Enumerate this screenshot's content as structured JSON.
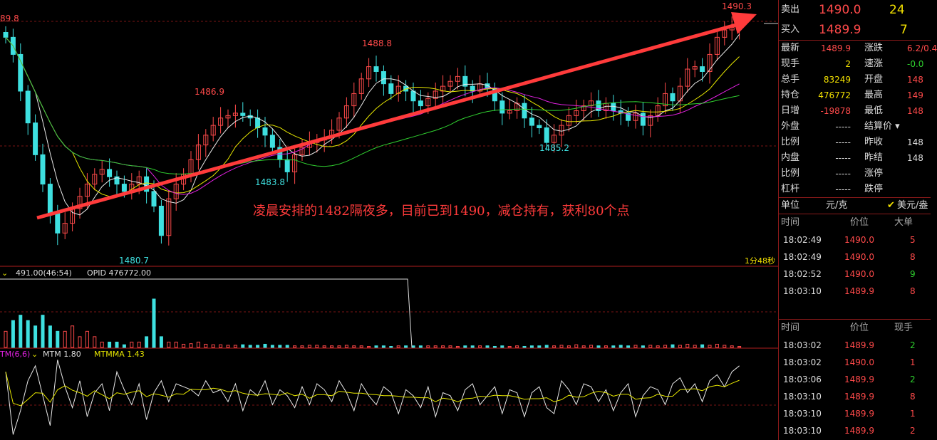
{
  "chart_data": {
    "type": "candlestick",
    "price_axis_guides": [
      1490.3,
      1489.8
    ],
    "annotations": {
      "high_top": "1490.3",
      "left_edge": "89.8",
      "l1": "1486.9",
      "l2": "1488.8",
      "l3": "1483.8",
      "l4": "1485.2",
      "l5": "1480.7",
      "comment": "凌晨安排的1482隔夜多，目前已到1490，减仓持有，获利80个点",
      "period": "1分48秒"
    },
    "volume_header": {
      "vol": "491.00(46:54)",
      "opid": "OPID 476772.00"
    },
    "mtm_header": {
      "name": "TM(6,6)",
      "mtm": "MTM 1.80",
      "mtmma": "MTMMA 1.43"
    },
    "closes": [
      1489.6,
      1488.9,
      1487.4,
      1486.1,
      1484.8,
      1483.6,
      1482.4,
      1481.6,
      1482.0,
      1482.6,
      1483.1,
      1483.6,
      1484.0,
      1484.2,
      1483.9,
      1483.6,
      1483.3,
      1483.6,
      1483.9,
      1483.3,
      1482.7,
      1481.5,
      1483.0,
      1483.6,
      1484.0,
      1484.6,
      1485.2,
      1485.6,
      1486.0,
      1486.3,
      1486.4,
      1486.5,
      1486.4,
      1486.3,
      1485.9,
      1485.6,
      1485.1,
      1484.6,
      1484.1,
      1484.8,
      1485.1,
      1485.3,
      1485.4,
      1485.5,
      1485.8,
      1486.3,
      1486.8,
      1487.3,
      1487.9,
      1488.4,
      1488.2,
      1487.7,
      1487.3,
      1487.6,
      1487.4,
      1487.0,
      1486.8,
      1487.1,
      1487.4,
      1487.6,
      1487.8,
      1488.0,
      1487.6,
      1487.4,
      1487.7,
      1487.5,
      1487.0,
      1486.5,
      1486.6,
      1486.9,
      1486.3,
      1486.0,
      1485.9,
      1485.3,
      1485.6,
      1486.0,
      1486.4,
      1486.6,
      1486.8,
      1487.0,
      1486.6,
      1486.9,
      1486.6,
      1486.5,
      1486.2,
      1486.5,
      1486.0,
      1486.4,
      1486.8,
      1487.3,
      1487.0,
      1487.6,
      1488.3,
      1488.4,
      1488.2,
      1488.9,
      1489.6,
      1489.9,
      1490.0,
      1490.2
    ],
    "volumes": [
      3,
      5,
      6,
      5,
      4,
      6,
      4,
      3,
      3,
      4,
      2,
      3,
      2,
      1,
      1,
      1,
      0.5,
      1,
      1,
      2,
      9,
      2,
      1,
      1,
      0.6,
      0.7,
      1,
      0.6,
      0.5,
      0.5,
      0.4,
      0.4,
      0.5,
      0.4,
      0.4,
      0.6,
      0.4,
      0.4,
      0.4,
      0.3,
      0.3,
      0.4,
      0.4,
      0.3,
      0.3,
      0.3,
      0.4,
      0.3,
      0.3,
      0.2,
      0.3,
      0.3,
      0.2,
      0.3,
      0.3,
      0.3,
      0.3,
      0.3,
      0.3,
      0.3,
      0.3,
      0.2,
      0.3,
      0.3,
      0.3,
      0.3,
      0.2,
      0.3,
      0.2,
      0.3,
      0.2,
      0.3,
      0.3,
      0.4,
      0.3,
      0.4,
      0.3,
      0.5,
      0.3,
      0.4,
      0.3,
      0.3,
      0.3,
      0.4,
      0.3,
      0.4,
      0.3,
      0.4,
      0.3,
      0.4,
      0.5,
      0.4,
      0.6,
      0.4,
      0.5,
      0.4,
      0.6,
      0.4,
      0.3,
      0.2
    ],
    "mtm": [
      0.9,
      -1.2,
      -0.4,
      0.6,
      1.1,
      0.1,
      -0.9,
      1.3,
      0.4,
      -0.3,
      0.6,
      -0.6,
      0.2,
      0.5,
      -0.4,
      0.9,
      0.3,
      -0.2,
      0.5,
      -0.7,
      0.2,
      0.6,
      -0.1,
      0.5,
      0.4,
      0.3,
      0.1,
      0.6,
      0.2,
      0.3,
      -0.1,
      0.5,
      -0.4,
      0.3,
      0.1,
      0.6,
      -0.2,
      0.3,
      0.1,
      -0.3,
      0.4,
      -0.2,
      0.5,
      0.3,
      -0.1,
      0.6,
      0.2,
      -0.4,
      0.5,
      0.1,
      -0.2,
      0.4,
      0.2,
      -0.5,
      0.3,
      0.1,
      -0.3,
      0.4,
      -0.6,
      0.2,
      0.1,
      -0.4,
      0.3,
      0.5,
      -0.2,
      0.1,
      0.4,
      -0.5,
      0.3,
      0.2,
      -0.6,
      0.2,
      0.4,
      -0.3,
      -0.5,
      0.6,
      0.3,
      -0.2,
      0.5,
      0.4,
      -0.1,
      0.3,
      -0.4,
      0.2,
      0.5,
      -0.6,
      0.1,
      0.4,
      0.3,
      -0.2,
      0.5,
      0.7,
      0.2,
      0.5,
      -0.1,
      0.6,
      0.8,
      0.4,
      0.9,
      1.1
    ],
    "colors": {
      "up": "#ff4a4a",
      "down": "#3ee0e0",
      "ma1": "#e8e8e8",
      "ma2": "#e6e600",
      "ma3": "#e020e0",
      "ma4": "#30d030",
      "arrow": "#ff3b3b",
      "grid": "#7a1515"
    }
  },
  "panel": {
    "sell": {
      "label": "卖出",
      "price": "1490.0",
      "qty": "24"
    },
    "buy": {
      "label": "买入",
      "price": "1489.9",
      "qty": "7"
    },
    "stats_left": [
      {
        "label": "最新",
        "value": "1489.9",
        "color": "#ff4a4a"
      },
      {
        "label": "现手",
        "value": "2",
        "color": "#f2e000"
      },
      {
        "label": "总手",
        "value": "83249",
        "color": "#f2e000"
      },
      {
        "label": "持仓",
        "value": "476772",
        "color": "#f2e000"
      },
      {
        "label": "日增",
        "value": "-19878",
        "color": "#ff4a4a"
      },
      {
        "label": "外盘",
        "value": "-----",
        "color": "#ddd"
      },
      {
        "label": "比例",
        "value": "-----",
        "color": "#ddd"
      },
      {
        "label": "内盘",
        "value": "-----",
        "color": "#ddd"
      },
      {
        "label": "比例",
        "value": "-----",
        "color": "#ddd"
      },
      {
        "label": "杠杆",
        "value": "-----",
        "color": "#ddd"
      }
    ],
    "stats_right": [
      {
        "label": "涨跌",
        "value": "6.2/0.4",
        "color": "#ff4a4a"
      },
      {
        "label": "速涨",
        "value": "-0.0",
        "color": "#2ed02e"
      },
      {
        "label": "开盘",
        "value": "148",
        "color": "#ff4a4a"
      },
      {
        "label": "最高",
        "value": "149",
        "color": "#ff4a4a"
      },
      {
        "label": "最低",
        "value": "148",
        "color": "#ff4a4a"
      },
      {
        "label": "结算价",
        "value": "",
        "color": "#ddd"
      },
      {
        "label": "昨收",
        "value": "148",
        "color": "#ddd"
      },
      {
        "label": "昨结",
        "value": "148",
        "color": "#ddd"
      },
      {
        "label": "涨停",
        "value": "",
        "color": "#ddd"
      },
      {
        "label": "跌停",
        "value": "",
        "color": "#ddd"
      }
    ],
    "unit": {
      "label": "单位",
      "value": "元/克",
      "currency": "美元/盎"
    },
    "trades1": {
      "headers": [
        "时间",
        "价位",
        "大单"
      ],
      "rows": [
        {
          "time": "18:02:49",
          "price": "1490.0",
          "qty": "5",
          "qc": "#ff4a4a"
        },
        {
          "time": "18:02:49",
          "price": "1490.0",
          "qty": "8",
          "qc": "#ff4a4a"
        },
        {
          "time": "18:02:52",
          "price": "1490.0",
          "qty": "9",
          "qc": "#2ed02e"
        },
        {
          "time": "18:03:10",
          "price": "1489.9",
          "qty": "8",
          "qc": "#ff4a4a"
        }
      ]
    },
    "trades2": {
      "headers": [
        "时间",
        "价位",
        "现手"
      ],
      "rows": [
        {
          "time": "18:03:02",
          "price": "1489.9",
          "qty": "2",
          "qc": "#2ed02e"
        },
        {
          "time": "18:03:02",
          "price": "1490.0",
          "qty": "1",
          "qc": "#ff4a4a"
        },
        {
          "time": "18:03:06",
          "price": "1489.9",
          "qty": "2",
          "qc": "#2ed02e"
        },
        {
          "time": "18:03:10",
          "price": "1489.9",
          "qty": "8",
          "qc": "#ff4a4a"
        },
        {
          "time": "18:03:10",
          "price": "1489.9",
          "qty": "1",
          "qc": "#ff4a4a"
        },
        {
          "time": "18:03:10",
          "price": "1489.9",
          "qty": "2",
          "qc": "#ff4a4a"
        }
      ]
    }
  }
}
